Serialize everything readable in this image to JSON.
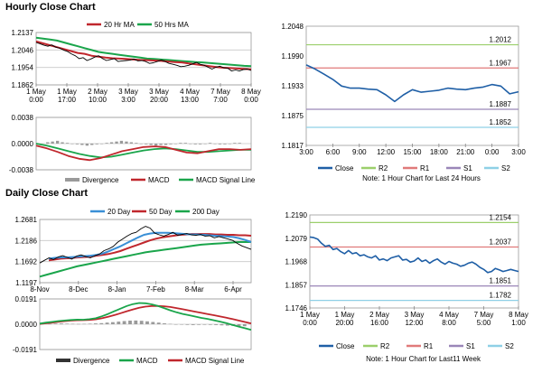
{
  "titles": {
    "hourly": "Hourly Close Chart",
    "daily": "Daily Close Chart"
  },
  "colors": {
    "close": "#1f5fa6",
    "ma_red": "#c0272d",
    "ma_green": "#1aa54b",
    "ma_blue": "#3a8fd6",
    "divergence": "#9a9a9a",
    "grid": "#c8c8c8",
    "r2": "#9bcf6b",
    "r1": "#e07a7a",
    "s1": "#9a86b8",
    "s2": "#8fd0e6"
  },
  "chart_data": [
    {
      "id": "hourly-price",
      "type": "line",
      "title": "",
      "legend": [
        "20 Hr MA",
        "50 Hrs MA"
      ],
      "y_ticks": [
        "1.2137",
        "1.2046",
        "1.1954",
        "1.1862"
      ],
      "ylim": [
        1.1862,
        1.2137
      ],
      "x_ticks": [
        "1 May\n0:00",
        "1 May\n17:00",
        "2 May\n10:00",
        "3 May\n3:00",
        "3 May\n20:00",
        "4 May\n13:00",
        "7 May\n7:00",
        "8 May\n0:00"
      ],
      "series": [
        {
          "name": "Close",
          "values": [
            1.2085,
            1.2078,
            1.207,
            1.2065,
            1.2072,
            1.206,
            1.2055,
            1.2045,
            1.2038,
            1.2025,
            1.2015,
            1.2,
            1.2005,
            1.199,
            1.1998,
            1.2008,
            1.2015,
            1.2,
            1.199,
            1.1995,
            1.2,
            1.1985,
            1.1988,
            1.199,
            1.1992,
            1.1998,
            1.1988,
            1.199,
            1.1985,
            1.1975,
            1.1978,
            1.1985,
            1.1992,
            1.1985,
            1.1975,
            1.197,
            1.1965,
            1.1958,
            1.196,
            1.1965,
            1.1972,
            1.198,
            1.197,
            1.1965,
            1.1955,
            1.1945,
            1.1955,
            1.196,
            1.1952,
            1.195,
            1.1935,
            1.194,
            1.1935,
            1.1942,
            1.1945,
            1.1938
          ]
        },
        {
          "name": "20 Hr MA",
          "values": [
            1.209,
            1.208,
            1.207,
            1.206,
            1.205,
            1.204,
            1.203,
            1.2025,
            1.2015,
            1.201,
            1.2005,
            1.2002,
            1.2,
            1.1998,
            1.1995,
            1.1993,
            1.1992,
            1.199,
            1.1988,
            1.1985,
            1.1982,
            1.198,
            1.1975,
            1.197,
            1.1965,
            1.196,
            1.1956,
            1.1952,
            1.195,
            1.1948,
            1.1946,
            1.1944
          ]
        },
        {
          "name": "50 Hrs MA",
          "values": [
            1.211,
            1.2105,
            1.21,
            1.2095,
            1.2085,
            1.2075,
            1.2065,
            1.2055,
            1.2045,
            1.2035,
            1.203,
            1.2025,
            1.202,
            1.2015,
            1.201,
            1.2005,
            1.2,
            1.1998,
            1.1995,
            1.1993,
            1.199,
            1.1987,
            1.1985,
            1.1982,
            1.198,
            1.1977,
            1.1974,
            1.1971,
            1.1968,
            1.1965,
            1.1962,
            1.196
          ]
        }
      ]
    },
    {
      "id": "hourly-macd",
      "type": "line",
      "title": "",
      "legend": [
        "Divergence",
        "MACD",
        "MACD Signal Line"
      ],
      "y_ticks": [
        "0.0038",
        "0.0000",
        "-0.0038"
      ],
      "ylim": [
        -0.0038,
        0.0038
      ],
      "series": [
        {
          "name": "Divergence",
          "values": [
            0.0002,
            0.0003,
            0.0004,
            0.0002,
            0.0001,
            0.0,
            -0.0001,
            -0.0002,
            -0.0003,
            -0.0002,
            -0.0001,
            0.0,
            0.0001,
            0.0002,
            0.0003,
            0.0004,
            0.0003,
            0.0002,
            0.0001,
            0.0,
            -0.0001,
            -0.0002,
            -0.0003,
            -0.0002,
            -0.0002,
            -0.0001,
            0.0,
            0.0001,
            0.0001,
            0.0,
            -0.0001,
            -0.0001,
            0.0,
            0.0001,
            0.0,
            -0.0001,
            -0.0001,
            0.0,
            0.0001,
            0.0001
          ]
        },
        {
          "name": "MACD",
          "values": [
            -0.0003,
            -0.0007,
            -0.0012,
            -0.0018,
            -0.0022,
            -0.0024,
            -0.0021,
            -0.0016,
            -0.0011,
            -0.0008,
            -0.0005,
            -0.0004,
            -0.0005,
            -0.0009,
            -0.0013,
            -0.0014,
            -0.0011,
            -0.0008,
            -0.0008,
            -0.0009,
            -0.0008
          ]
        },
        {
          "name": "MACD Signal Line",
          "values": [
            0.0,
            -0.0003,
            -0.0007,
            -0.0011,
            -0.0015,
            -0.0018,
            -0.002,
            -0.0019,
            -0.0016,
            -0.0013,
            -0.001,
            -0.0008,
            -0.0007,
            -0.0008,
            -0.001,
            -0.0012,
            -0.0012,
            -0.0011,
            -0.001,
            -0.0009,
            -0.0009
          ]
        }
      ]
    },
    {
      "id": "hourly-levels",
      "type": "line",
      "title": "",
      "y_ticks": [
        "1.2048",
        "1.1990",
        "1.1933",
        "1.1875",
        "1.1817"
      ],
      "ylim": [
        1.1817,
        1.2048
      ],
      "x_ticks": [
        "3:00",
        "6:00",
        "9:00",
        "12:00",
        "15:00",
        "18:00",
        "21:00",
        "0:00",
        "3:00"
      ],
      "levels": [
        {
          "name": "R2",
          "value": 1.2012,
          "label": "1.2012"
        },
        {
          "name": "R1",
          "value": 1.1967,
          "label": "1.1967"
        },
        {
          "name": "S1",
          "value": 1.1887,
          "label": "1.1887"
        },
        {
          "name": "S2",
          "value": 1.1852,
          "label": "1.1852"
        }
      ],
      "legend": [
        "Close",
        "R2",
        "R1",
        "S1",
        "S2"
      ],
      "note": "Note: 1 Hour Chart for Last 24 Hours",
      "series": [
        {
          "name": "Close",
          "values": [
            1.1973,
            1.1965,
            1.1955,
            1.1945,
            1.1932,
            1.1928,
            1.1928,
            1.1926,
            1.1925,
            1.1915,
            1.1902,
            1.1915,
            1.1925,
            1.192,
            1.1922,
            1.1924,
            1.1928,
            1.1926,
            1.1925,
            1.1928,
            1.193,
            1.1935,
            1.1932,
            1.1917,
            1.1921
          ]
        }
      ]
    },
    {
      "id": "daily-price",
      "type": "line",
      "title": "",
      "legend": [
        "20 Day",
        "50 Day",
        "200 Day"
      ],
      "y_ticks": [
        "1.2681",
        "1.2186",
        "1.1692",
        "1.1197"
      ],
      "ylim": [
        1.1197,
        1.2681
      ],
      "x_ticks": [
        "8-Nov",
        "8-Dec",
        "8-Jan",
        "7-Feb",
        "8-Mar",
        "6-Apr"
      ],
      "series": [
        {
          "name": "Close",
          "values": [
            1.166,
            1.172,
            1.178,
            1.174,
            1.18,
            1.183,
            1.179,
            1.175,
            1.182,
            1.185,
            1.181,
            1.178,
            1.183,
            1.187,
            1.195,
            1.199,
            1.205,
            1.215,
            1.222,
            1.229,
            1.235,
            1.238,
            1.246,
            1.252,
            1.248,
            1.236,
            1.232,
            1.229,
            1.233,
            1.238,
            1.231,
            1.233,
            1.235,
            1.232,
            1.231,
            1.233,
            1.229,
            1.23,
            1.225,
            1.228,
            1.225,
            1.222,
            1.219,
            1.212,
            1.206,
            1.202,
            1.198
          ]
        },
        {
          "name": "20 Day",
          "values": [
            1.176,
            1.178,
            1.179,
            1.179,
            1.18,
            1.181,
            1.182,
            1.183,
            1.185,
            1.188,
            1.193,
            1.199,
            1.205,
            1.212,
            1.219,
            1.226,
            1.232,
            1.235,
            1.237,
            1.237,
            1.237,
            1.236,
            1.235,
            1.234,
            1.233,
            1.233,
            1.232,
            1.231,
            1.23,
            1.229,
            1.228,
            1.227,
            1.224,
            1.22,
            1.215
          ]
        },
        {
          "name": "50 Day",
          "values": [
            1.172,
            1.174,
            1.176,
            1.177,
            1.178,
            1.179,
            1.18,
            1.181,
            1.183,
            1.185,
            1.187,
            1.19,
            1.194,
            1.199,
            1.204,
            1.209,
            1.214,
            1.219,
            1.223,
            1.226,
            1.228,
            1.23,
            1.232,
            1.233,
            1.234,
            1.234,
            1.234,
            1.234,
            1.233,
            1.233,
            1.232,
            1.232,
            1.231,
            1.231,
            1.23
          ]
        },
        {
          "name": "200 Day",
          "values": [
            1.134,
            1.138,
            1.142,
            1.146,
            1.15,
            1.154,
            1.158,
            1.161,
            1.164,
            1.167,
            1.17,
            1.173,
            1.176,
            1.179,
            1.182,
            1.185,
            1.188,
            1.191,
            1.193,
            1.195,
            1.197,
            1.199,
            1.201,
            1.203,
            1.205,
            1.207,
            1.209,
            1.21,
            1.211,
            1.212,
            1.213,
            1.214,
            1.215,
            1.215,
            1.215
          ]
        }
      ]
    },
    {
      "id": "daily-macd",
      "type": "line",
      "title": "",
      "legend": [
        "Divergence",
        "MACD",
        "MACD Signal Line"
      ],
      "y_ticks": [
        "0.0191",
        "0.0000",
        "-0.0191"
      ],
      "ylim": [
        -0.0191,
        0.0191
      ],
      "series": [
        {
          "name": "Divergence",
          "values": [
            0.0003,
            0.0005,
            0.0006,
            0.0004,
            0.0003,
            0.0002,
            0.0003,
            0.0004,
            0.0006,
            0.0008,
            0.0012,
            0.0016,
            0.002,
            0.0024,
            0.0027,
            0.0028,
            0.0026,
            0.0022,
            0.0017,
            0.0012,
            0.0007,
            0.0003,
            0.0,
            -0.0003,
            -0.0005,
            -0.0006,
            -0.0005,
            -0.0004,
            -0.0005,
            -0.0006,
            -0.0008,
            -0.001,
            -0.0012,
            -0.0014,
            -0.0015
          ]
        },
        {
          "name": "MACD",
          "values": [
            0.0005,
            0.0012,
            0.0018,
            0.0024,
            0.0028,
            0.0032,
            0.0035,
            0.0034,
            0.0038,
            0.0045,
            0.006,
            0.0078,
            0.0098,
            0.0118,
            0.0138,
            0.0152,
            0.016,
            0.0158,
            0.015,
            0.0138,
            0.0122,
            0.0105,
            0.009,
            0.0078,
            0.0068,
            0.0058,
            0.0048,
            0.004,
            0.003,
            0.002,
            0.0008,
            -0.0005,
            -0.0018,
            -0.003,
            -0.0042
          ]
        },
        {
          "name": "MACD Signal Line",
          "values": [
            0.0002,
            0.0007,
            0.0012,
            0.0018,
            0.0023,
            0.0027,
            0.003,
            0.0031,
            0.0033,
            0.0037,
            0.0045,
            0.0056,
            0.0069,
            0.0083,
            0.0098,
            0.0112,
            0.0125,
            0.0133,
            0.0137,
            0.0138,
            0.0136,
            0.013,
            0.0122,
            0.0113,
            0.0104,
            0.0095,
            0.0086,
            0.0077,
            0.0068,
            0.0059,
            0.0049,
            0.0039,
            0.0028,
            0.0017,
            0.0006
          ]
        }
      ]
    },
    {
      "id": "daily-levels",
      "type": "line",
      "title": "",
      "y_ticks": [
        "1.2190",
        "1.2079",
        "1.1968",
        "1.1857",
        "1.1746"
      ],
      "ylim": [
        1.1746,
        1.219
      ],
      "x_ticks": [
        "1 May\n0:00",
        "1 May\n20:00",
        "2 May\n16:00",
        "3 May\n12:00",
        "4 May\n8:00",
        "7 May\n5:00",
        "8 May\n1:00"
      ],
      "levels": [
        {
          "name": "R2",
          "value": 1.2154,
          "label": "1.2154"
        },
        {
          "name": "R1",
          "value": 1.2037,
          "label": "1.2037"
        },
        {
          "name": "S1",
          "value": 1.1851,
          "label": "1.1851"
        },
        {
          "name": "S2",
          "value": 1.1782,
          "label": "1.1782"
        }
      ],
      "legend": [
        "Close",
        "R2",
        "R1",
        "S1",
        "S2"
      ],
      "note": "Note: 1 Hour Chart for Last11 Week",
      "series": [
        {
          "name": "Close",
          "values": [
            1.2085,
            1.2082,
            1.2075,
            1.2055,
            1.204,
            1.2045,
            1.2025,
            1.203,
            1.2015,
            1.2005,
            1.202,
            1.2005,
            1.201,
            1.1995,
            1.2,
            1.199,
            1.1985,
            1.1995,
            1.1975,
            1.198,
            1.1972,
            1.1985,
            1.199,
            1.1995,
            1.1975,
            1.1978,
            1.1965,
            1.197,
            1.1985,
            1.1968,
            1.1975,
            1.196,
            1.1972,
            1.198,
            1.1965,
            1.1955,
            1.1968,
            1.196,
            1.1955,
            1.1945,
            1.195,
            1.196,
            1.1965,
            1.1955,
            1.194,
            1.193,
            1.1915,
            1.192,
            1.1935,
            1.1928,
            1.192,
            1.1925,
            1.193,
            1.1925,
            1.192
          ]
        }
      ]
    }
  ]
}
